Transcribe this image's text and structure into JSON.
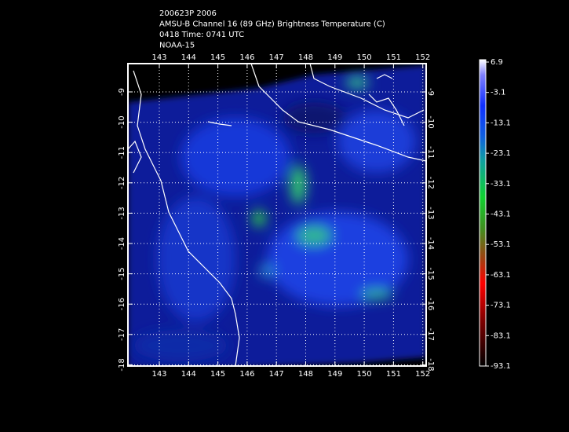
{
  "header": {
    "lines": [
      "200623P 2006",
      "AMSU-B Channel 16 (89 GHz) Brightness Temperature (C)",
      "0418 Time: 0741 UTC",
      "NOAA-15"
    ]
  },
  "map": {
    "lon_labels": [
      "143",
      "144",
      "145",
      "146",
      "147",
      "148",
      "149",
      "150",
      "151",
      "152"
    ],
    "lat_labels": [
      "-9",
      "-10",
      "-11",
      "-12",
      "-13",
      "-14",
      "-15",
      "-16",
      "-17",
      "-18"
    ]
  },
  "colorbar": {
    "labels": [
      "6.9",
      "-3.1",
      "-13.1",
      "-23.1",
      "-33.1",
      "-43.1",
      "-53.1",
      "-63.1",
      "-73.1",
      "-83.1",
      "-93.1"
    ]
  }
}
